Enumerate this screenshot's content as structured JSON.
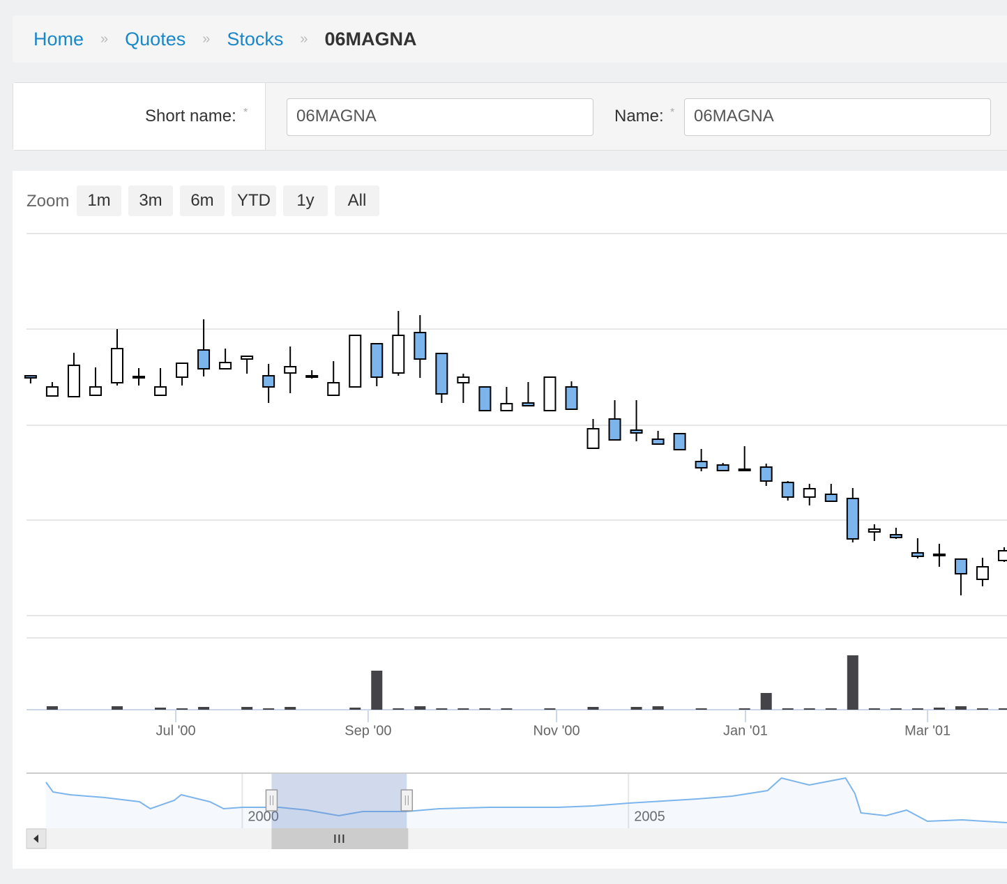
{
  "breadcrumb": {
    "items": [
      "Home",
      "Quotes",
      "Stocks"
    ],
    "separator": "»",
    "current": "06MAGNA"
  },
  "form": {
    "required_mark": "*",
    "fields": [
      {
        "label": "Short name:",
        "value": "06MAGNA"
      },
      {
        "label": "Name:",
        "value": "06MAGNA"
      }
    ]
  },
  "zoom": {
    "label": "Zoom",
    "buttons": [
      "1m",
      "3m",
      "6m",
      "YTD",
      "1y",
      "All"
    ]
  },
  "chart_data": {
    "type": "candlestick",
    "open": [
      344,
      315,
      314,
      316,
      334,
      341,
      316,
      342,
      381,
      354,
      368,
      344,
      348,
      344,
      316,
      328,
      390,
      348,
      406,
      376,
      334,
      328,
      294,
      305,
      294,
      328,
      240,
      282,
      266,
      253,
      261,
      221,
      216,
      210,
      213,
      191,
      170,
      174,
      168,
      120,
      116,
      90,
      86,
      81,
      52,
      79
    ],
    "high": [
      345,
      335,
      377,
      356,
      411,
      355,
      355,
      362,
      425,
      383,
      373,
      361,
      386,
      352,
      365,
      402,
      390,
      437,
      431,
      376,
      347,
      328,
      328,
      335,
      342,
      336,
      282,
      309,
      309,
      265,
      261,
      239,
      219,
      243,
      218,
      193,
      189,
      189,
      183,
      131,
      126,
      111,
      103,
      81,
      83,
      98
    ],
    "low": [
      333,
      315,
      314,
      316,
      330,
      330,
      316,
      330,
      343,
      354,
      347,
      305,
      319,
      340,
      316,
      328,
      329,
      344,
      341,
      305,
      305,
      294,
      294,
      300,
      294,
      296,
      240,
      251,
      250,
      246,
      238,
      207,
      207,
      207,
      186,
      165,
      158,
      164,
      105,
      107,
      110,
      82,
      70,
      29,
      42,
      77
    ],
    "close": [
      341,
      328,
      359,
      328,
      383,
      343,
      328,
      362,
      354,
      363,
      372,
      328,
      357,
      342,
      334,
      402,
      342,
      402,
      368,
      318,
      342,
      294,
      304,
      301,
      342,
      296,
      268,
      252,
      262,
      246,
      238,
      212,
      208,
      208,
      193,
      170,
      182,
      164,
      110,
      124,
      112,
      85,
      88,
      60,
      70,
      93
    ],
    "up_color": "#ffffff",
    "down_color": "#7cb5ec",
    "ylim": [
      0,
      548
    ],
    "yticks": [
      0,
      137,
      273,
      411,
      548
    ],
    "grid": true,
    "xlim": [
      -0.19,
      45.13
    ],
    "xticks": [
      {
        "value": 6.71,
        "label": "Jul '00"
      },
      {
        "value": 15.6,
        "label": "Sep '00"
      },
      {
        "value": 24.31,
        "label": "Nov '00"
      },
      {
        "value": 33.04,
        "label": "Jan '01"
      },
      {
        "value": 41.46,
        "label": "Mar '01"
      }
    ],
    "volume": {
      "color": "#434348",
      "ylim": [
        0,
        103
      ],
      "values": [
        0,
        5,
        0,
        0,
        5,
        0,
        3,
        2,
        4,
        0,
        4,
        2,
        4,
        0,
        0,
        3,
        56,
        2,
        5,
        2,
        2,
        2,
        2,
        0,
        2,
        0,
        4,
        0,
        4,
        5,
        0,
        2,
        0,
        2,
        24,
        2,
        2,
        2,
        78,
        2,
        2,
        2,
        3,
        5,
        2,
        2
      ]
    },
    "navigator": {
      "color": "#7cb5ec",
      "x": [
        1997.46,
        1997.55,
        1997.77,
        1998.22,
        1998.67,
        1998.81,
        1999.12,
        1999.21,
        1999.58,
        1999.76,
        2000,
        2000.48,
        2000.84,
        2001.25,
        2001.56,
        2002.13,
        2002.55,
        2003.19,
        2004.09,
        2004.54,
        2005,
        2005.89,
        2006.34,
        2006.8,
        2006.98,
        2007.34,
        2007.81,
        2007.93,
        2008.01,
        2008.33,
        2008.6,
        2008.87,
        2009.32,
        2009.9
      ],
      "values": [
        66,
        52,
        48,
        44,
        38,
        28,
        40,
        48,
        38,
        28,
        30,
        30,
        26,
        18,
        24,
        24,
        28,
        30,
        30,
        32,
        36,
        42,
        46,
        54,
        72,
        62,
        72,
        50,
        22,
        18,
        26,
        10,
        12,
        8
      ],
      "xlim": [
        1997.46,
        2009.9
      ],
      "ylim": [
        0,
        78
      ],
      "xticks": [
        2000,
        2005
      ],
      "range": [
        2000.38,
        2002.13
      ]
    }
  }
}
